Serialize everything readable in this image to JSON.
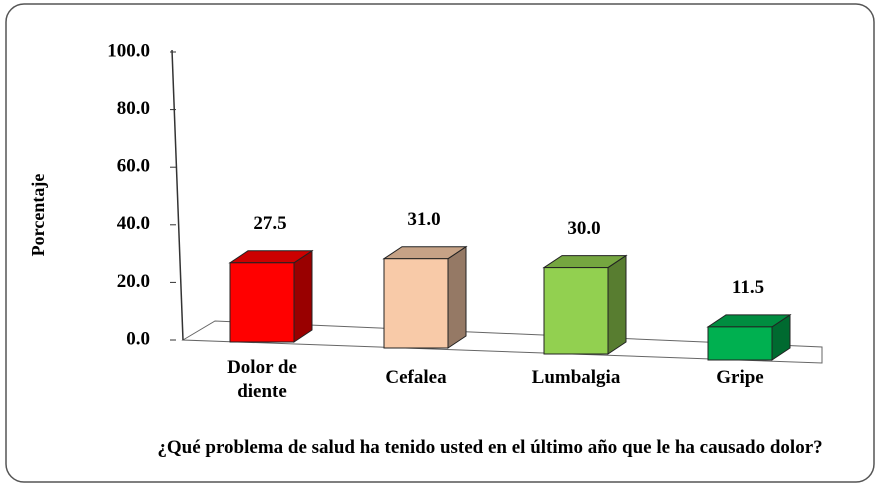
{
  "chart_data": {
    "type": "bar3d",
    "categories": [
      "Dolor de diente",
      "Cefalea",
      "Lumbalgia",
      "Gripe"
    ],
    "values": [
      27.5,
      31.0,
      30.0,
      11.5
    ],
    "value_labels": [
      "27.5",
      "31.0",
      "30.0",
      "11.5"
    ],
    "colors": [
      "#ff0000",
      "#f8caa8",
      "#92d050",
      "#00b050"
    ],
    "ylabel": "Porcentaje",
    "xlabel": "¿Qué problema de salud ha tenido usted en el último año que le ha causado dolor?",
    "ylim": [
      0,
      100
    ],
    "yticks": [
      {
        "value": 0,
        "label": "0.0"
      },
      {
        "value": 20,
        "label": "20.0"
      },
      {
        "value": 40,
        "label": "40.0"
      },
      {
        "value": 60,
        "label": "60.0"
      },
      {
        "value": 80,
        "label": "80.0"
      },
      {
        "value": 100,
        "label": "100.0"
      }
    ]
  }
}
